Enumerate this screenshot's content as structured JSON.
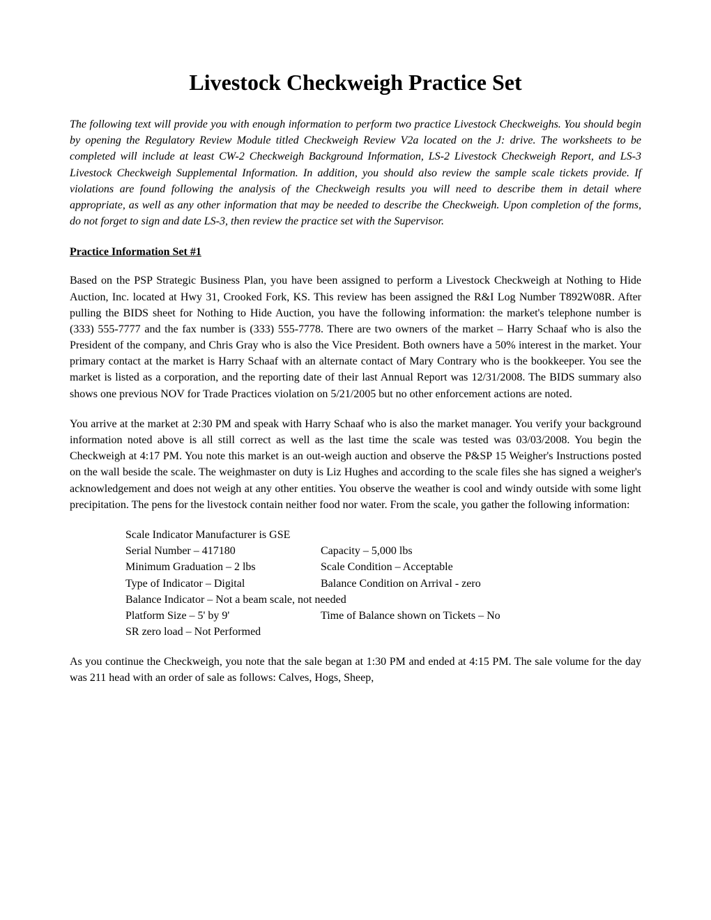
{
  "title": "Livestock Checkweigh Practice Set",
  "intro": "The following text will provide you with enough information to perform two practice Livestock Checkweighs.  You should begin by opening the Regulatory Review Module titled Checkweigh Review V2a located on the J: drive.  The worksheets to be completed will include at least CW-2 Checkweigh Background Information, LS-2 Livestock Checkweigh Report, and LS-3 Livestock Checkweigh Supplemental Information. In addition, you should also review the sample scale tickets provide.  If violations are found following the analysis of the Checkweigh results you will need to describe them in detail where appropriate, as well as any other information that may be needed to describe the Checkweigh.  Upon completion of the forms, do not forget to sign and date LS-3, then review the practice set with the Supervisor.",
  "section1_heading": "Practice Information Set #1",
  "para1": "Based on the PSP Strategic Business Plan, you have been assigned to perform a Livestock Checkweigh at Nothing to Hide Auction, Inc. located at Hwy 31, Crooked Fork, KS.  This review has been assigned the R&I Log Number T892W08R.  After pulling the BIDS sheet for Nothing to Hide Auction, you have the following information: the market's telephone number is (333) 555-7777 and the fax number is (333) 555-7778. There are two owners of the market – Harry Schaaf who is also the President of the company, and Chris Gray who is also the Vice President.  Both owners have a 50% interest in the market.  Your primary contact at the market is Harry Schaaf with an alternate contact of Mary Contrary who is the bookkeeper.  You see the market is listed as a corporation, and the reporting date of their last Annual Report was 12/31/2008.  The BIDS summary also shows one previous NOV for Trade Practices violation on 5/21/2005 but no other enforcement actions are noted.",
  "para2": "You arrive at the market at 2:30 PM and speak with Harry Schaaf who is also the market manager.  You verify your background information noted above is all still correct as well as the last time the scale was tested was 03/03/2008.  You begin the Checkweigh at 4:17 PM.  You note this market is an out-weigh auction and observe the P&SP 15 Weigher's Instructions posted on the wall beside the scale.  The weighmaster on duty is Liz Hughes and according to the scale files she has signed a weigher's acknowledgement and does not weigh at any other entities.  You observe the weather is cool and windy outside with some light precipitation.  The pens for the livestock contain neither food nor water. From the scale, you gather the following information:",
  "scale": {
    "r1c1": "Scale Indicator Manufacturer is GSE",
    "r2c1": "Serial Number – 417180",
    "r2c2": "Capacity – 5,000 lbs",
    "r3c1": "Minimum Graduation – 2 lbs",
    "r3c2": "Scale Condition – Acceptable",
    "r4c1": "Type of Indicator – Digital",
    "r4c2": "Balance Condition on Arrival - zero",
    "r5c1": "Balance Indicator – Not a beam scale, not needed",
    "r6c1": "Platform Size – 5' by 9'",
    "r6c2": "Time of Balance shown on Tickets – No",
    "r7c1": "SR zero load – Not Performed"
  },
  "para3": "As you continue the Checkweigh, you note that the sale began at 1:30 PM and ended at 4:15 PM.  The sale volume for the day was 211 head with an order of sale as follows: Calves, Hogs, Sheep,"
}
